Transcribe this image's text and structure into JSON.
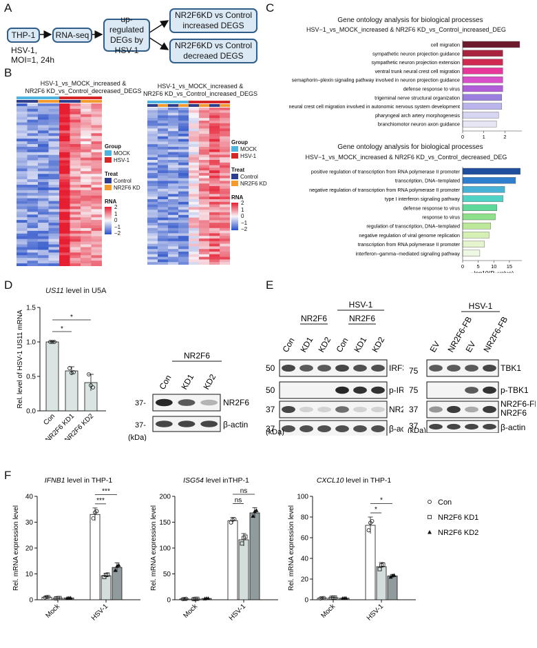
{
  "panels": {
    "A": "A",
    "B": "B",
    "C": "C",
    "D": "D",
    "E": "E",
    "F": "F"
  },
  "flow": {
    "start": "THP-1",
    "start_caption": "HSV-1,\nMOI=1, 24h",
    "rnaseq": "RNA-seq",
    "deg": "up-regulated\nDEGs by\nHSV-1",
    "out_increased": "NR2F6KD vs Control\nincreased DEGS",
    "out_decreased": "NR2F6KD vs Control\ndecreaed DEGS"
  },
  "heatmaps": {
    "left_title": "HSV-1_vs_MOCK_increased &\nNR2F6 KD_vs_Control_decreased_DEGS",
    "right_title": "HSV-1_vs_MOCK_increased &\nNR2F6 KD_vs_Control_increased_DEGS",
    "legend": {
      "group_title": "Group",
      "mock": "MOCK",
      "hsv1": "HSV-1",
      "treat_title": "Treat",
      "control": "Control",
      "kd": "NR2F6 KD",
      "rna_title": "RNA",
      "ticks": [
        "2",
        "1",
        "0",
        "−1",
        "−2"
      ]
    },
    "colors": {
      "mock": "#4fb3e0",
      "hsv1": "#d62728",
      "control": "#2d3e8f",
      "kd": "#f29a2e"
    }
  },
  "go_top": {
    "title": "Gene ontology analysis for biological processes",
    "subtitle": "HSV−1_vs_MOCK_increased & NR2F6 KD_vs_Control_increased_DEG",
    "xlabel": "−log10(P−value)",
    "ticks": [
      "0",
      "1",
      "2"
    ],
    "terms": [
      "cell migration",
      "sympathetic neuron projection guidance",
      "sympathetic neuron projection extension",
      "ventral trunk neural crest cell migration",
      "semaphorin−plexin signaling pathway involved in neuron projection guidance",
      "defense response to virus",
      "trigeminal nerve structural organization",
      "neural crest cell migration involved in autonomic nervous system development",
      "pharyngeal arch artery morphogenesis",
      "branchiomotor neuron axon guidance"
    ]
  },
  "go_bottom": {
    "title": "Gene ontology analysis for biological processes",
    "subtitle": "HSV−1_vs_MOCK_increased & NR2F6 KD_vs_Control_decreased_DEG",
    "xlabel": "−log10(P−value)",
    "ticks": [
      "0",
      "5",
      "10",
      "15"
    ],
    "terms": [
      "positive regulation of transcription from RNA polymerase II promoter",
      "transcription, DNA−templated",
      "negative regulation of transcription from RNA polymerase II promoter",
      "type I interferon signaling pathway",
      "defense response to virus",
      "response to virus",
      "regulation of transcription, DNA−templated",
      "negative regulation of viral genome replication",
      "transcription from RNA polymerase II promoter",
      "interferon−gamma−mediated signaling pathway"
    ]
  },
  "panel_d": {
    "title_gene": "US11",
    "title_rest": " level in U5A",
    "ylabel": "Rel. level of HSV-1 US11 mRNA",
    "yticks": [
      "0.0",
      "0.5",
      "1.0",
      "1.5"
    ],
    "categories": [
      "Con",
      "NR2F6 KD1",
      "NR2F6 KD2"
    ],
    "sig": [
      "*",
      "*"
    ],
    "blot_header": "NR2F6",
    "blot_lanes": [
      "Con",
      "KD1",
      "KD2"
    ],
    "blot_rows": [
      "NR2F6",
      "β-actin"
    ],
    "mw": [
      "37-",
      "37-"
    ],
    "kda": "(kDa)"
  },
  "panel_e": {
    "left_header_nr": "NR2F6",
    "left_header_hsv": "HSV-1",
    "left_header_nr2": "NR2F6",
    "left_lanes": [
      "Con",
      "KD1",
      "KD2",
      "Con",
      "KD1",
      "KD2"
    ],
    "left_rows": [
      "IRF3",
      "p-IRF3",
      "NR2F6",
      "β-actin"
    ],
    "left_mw": [
      "50",
      "50",
      "37",
      "37"
    ],
    "right_header": "HSV-1",
    "right_lanes": [
      "EV",
      "NR2F6-FB",
      "EV",
      "NR2F6-FB"
    ],
    "right_rows": [
      "TBK1",
      "p-TBK1",
      "NR2F6-FB",
      "NR2F6",
      "β-actin"
    ],
    "right_mw": [
      "75",
      "75",
      "37",
      "37"
    ],
    "kda": "(kDa)"
  },
  "panel_f": {
    "ylabel": "Rel. mRNA expression level",
    "legend": [
      "Con",
      "NR2F6 KD1",
      "NR2F6 KD2"
    ],
    "charts": [
      {
        "gene": "IFNB1",
        "title_rest": " level in THP-1",
        "yticks": [
          "0",
          "10",
          "20",
          "30",
          "40"
        ],
        "sig": [
          "***",
          "***"
        ]
      },
      {
        "gene": "ISG54",
        "title_rest": " level inTHP-1",
        "yticks": [
          "0",
          "50",
          "100",
          "150",
          "200"
        ],
        "sig": [
          "ns",
          "ns"
        ]
      },
      {
        "gene": "CXCL10",
        "title_rest": " level in THP-1",
        "yticks": [
          "0",
          "20",
          "40",
          "60",
          "80",
          "100"
        ],
        "sig": [
          "*",
          "*"
        ]
      }
    ],
    "groups": [
      "Mock",
      "HSV-1"
    ]
  },
  "chart_data": [
    {
      "type": "bar",
      "title": "Gene ontology analysis for biological processes (HSV-1_vs_MOCK_increased & NR2F6 KD_vs_Control_increased_DEG)",
      "orientation": "horizontal",
      "xlabel": "-log10(P-value)",
      "xlim": [
        0,
        2.8
      ],
      "categories": [
        "cell migration",
        "sympathetic neuron projection guidance",
        "sympathetic neuron projection extension",
        "ventral trunk neural crest cell migration",
        "semaphorin-plexin signaling pathway involved in neuron projection guidance",
        "defense response to virus",
        "trigeminal nerve structural organization",
        "neural crest cell migration involved in autonomic nervous system development",
        "pharyngeal arch artery morphogenesis",
        "branchiomotor neuron axon guidance"
      ],
      "values": [
        2.7,
        1.9,
        1.9,
        1.9,
        1.9,
        1.9,
        1.85,
        1.85,
        1.7,
        1.6
      ],
      "colors": [
        "#6e1a2e",
        "#a8233d",
        "#d12a52",
        "#e8379a",
        "#d94fc9",
        "#b05fd8",
        "#9a7fe0",
        "#b9b4ec",
        "#d6d6f2",
        "#e6e6f5"
      ]
    },
    {
      "type": "bar",
      "title": "Gene ontology analysis for biological processes (HSV-1_vs_MOCK_increased & NR2F6 KD_vs_Control_decreased_DEG)",
      "orientation": "horizontal",
      "xlabel": "-log10(P-value)",
      "xlim": [
        0,
        19
      ],
      "categories": [
        "positive regulation of transcription from RNA polymerase II promoter",
        "transcription, DNA-templated",
        "negative regulation of transcription from RNA polymerase II promoter",
        "type I interferon signaling pathway",
        "defense response to virus",
        "response to virus",
        "regulation of transcription, DNA-templated",
        "negative regulation of viral genome replication",
        "transcription from RNA polymerase II promoter",
        "interferon-gamma-mediated signaling pathway"
      ],
      "values": [
        18.5,
        17,
        13.5,
        13,
        11,
        10.5,
        9,
        8.5,
        7,
        5.5
      ],
      "colors": [
        "#1f4e9e",
        "#2f7fd0",
        "#45b2d6",
        "#4ed3c4",
        "#5fd99a",
        "#8fe08a",
        "#bde89a",
        "#d6f0b4",
        "#e4f5ce",
        "#eef8e2"
      ]
    },
    {
      "type": "bar",
      "title": "US11 level in U5A",
      "ylabel": "Rel. level of HSV-1 US11 mRNA",
      "ylim": [
        0,
        1.5
      ],
      "categories": [
        "Con",
        "NR2F6 KD1",
        "NR2F6 KD2"
      ],
      "values": [
        1.0,
        0.58,
        0.41
      ],
      "errors": [
        0.01,
        0.06,
        0.12
      ],
      "points": [
        [
          1.0,
          1.0,
          1.0
        ],
        [
          0.62,
          0.55,
          0.56
        ],
        [
          0.53,
          0.37,
          0.34
        ]
      ]
    },
    {
      "type": "bar",
      "title": "IFNB1 level in THP-1",
      "ylabel": "Rel. mRNA expression level",
      "ylim": [
        0,
        40
      ],
      "categories": [
        "Mock",
        "HSV-1"
      ],
      "series": [
        {
          "name": "Con",
          "values": [
            1,
            33
          ],
          "errors": [
            0.2,
            2.5
          ]
        },
        {
          "name": "NR2F6 KD1",
          "values": [
            0.6,
            9.3
          ],
          "errors": [
            0.1,
            0.9
          ]
        },
        {
          "name": "NR2F6 KD2",
          "values": [
            0.7,
            12.5
          ],
          "errors": [
            0.1,
            1.8
          ]
        }
      ]
    },
    {
      "type": "bar",
      "title": "ISG54 level inTHP-1",
      "ylabel": "Rel. mRNA expression level",
      "ylim": [
        0,
        200
      ],
      "categories": [
        "Mock",
        "HSV-1"
      ],
      "series": [
        {
          "name": "Con",
          "values": [
            1.5,
            153
          ],
          "errors": [
            0.5,
            6
          ]
        },
        {
          "name": "NR2F6 KD1",
          "values": [
            1.5,
            116
          ],
          "errors": [
            0.5,
            12
          ]
        },
        {
          "name": "NR2F6 KD2",
          "values": [
            2.5,
            168
          ],
          "errors": [
            0.5,
            10
          ]
        }
      ]
    },
    {
      "type": "bar",
      "title": "CXCL10 level in THP-1",
      "ylabel": "Rel. mRNA expression level",
      "ylim": [
        0,
        100
      ],
      "categories": [
        "Mock",
        "HSV-1"
      ],
      "series": [
        {
          "name": "Con",
          "values": [
            1.5,
            72
          ],
          "errors": [
            0.3,
            8
          ]
        },
        {
          "name": "NR2F6 KD1",
          "values": [
            2,
            32
          ],
          "errors": [
            0.3,
            4
          ]
        },
        {
          "name": "NR2F6 KD2",
          "values": [
            1.5,
            23
          ],
          "errors": [
            0.3,
            1.5
          ]
        }
      ]
    }
  ]
}
